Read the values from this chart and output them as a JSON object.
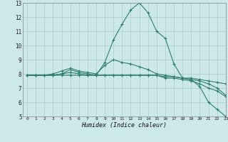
{
  "xlabel": "Humidex (Indice chaleur)",
  "bg_color": "#cce8e8",
  "grid_color": "#aacccc",
  "line_color": "#2e7d6e",
  "xlim": [
    -0.5,
    23
  ],
  "ylim": [
    5,
    13
  ],
  "xticks": [
    0,
    1,
    2,
    3,
    4,
    5,
    6,
    7,
    8,
    9,
    10,
    11,
    12,
    13,
    14,
    15,
    16,
    17,
    18,
    19,
    20,
    21,
    22,
    23
  ],
  "yticks": [
    5,
    6,
    7,
    8,
    9,
    10,
    11,
    12,
    13
  ],
  "series": [
    [
      7.9,
      7.9,
      7.9,
      7.9,
      8.0,
      8.3,
      8.1,
      8.0,
      7.9,
      8.8,
      10.4,
      11.5,
      12.5,
      13.0,
      12.3,
      11.0,
      10.5,
      8.7,
      7.7,
      7.6,
      7.1,
      6.0,
      5.5,
      5.0
    ],
    [
      7.9,
      7.9,
      7.9,
      8.0,
      8.2,
      8.4,
      8.2,
      8.1,
      8.0,
      8.6,
      9.0,
      8.8,
      8.7,
      8.5,
      8.3,
      8.0,
      7.9,
      7.8,
      7.7,
      7.7,
      7.6,
      7.5,
      7.4,
      7.3
    ],
    [
      7.9,
      7.9,
      7.9,
      7.9,
      8.0,
      8.1,
      8.0,
      7.9,
      7.9,
      7.9,
      7.9,
      7.9,
      7.9,
      7.9,
      7.9,
      7.9,
      7.8,
      7.8,
      7.7,
      7.6,
      7.5,
      7.3,
      7.0,
      6.5
    ],
    [
      7.9,
      7.9,
      7.9,
      7.9,
      7.9,
      7.9,
      7.9,
      7.9,
      7.9,
      7.9,
      7.9,
      7.9,
      7.9,
      7.9,
      7.9,
      7.9,
      7.7,
      7.7,
      7.6,
      7.5,
      7.3,
      7.0,
      6.8,
      6.4
    ]
  ]
}
